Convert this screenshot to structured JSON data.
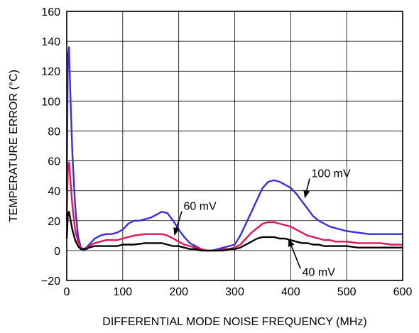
{
  "chart_data": {
    "type": "line",
    "xlabel": "DIFFERENTIAL MODE NOISE FREQUENCY (MHz)",
    "ylabel": "TEMPERATURE ERROR (°C)",
    "xlim": [
      0,
      600
    ],
    "ylim": [
      -20,
      160
    ],
    "x_ticks": [
      0,
      100,
      200,
      300,
      400,
      500,
      600
    ],
    "y_ticks": [
      -20,
      0,
      20,
      40,
      60,
      80,
      100,
      120,
      140,
      160
    ],
    "x_tick_labels": [
      "0",
      "100",
      "200",
      "300",
      "400",
      "500",
      "600"
    ],
    "y_tick_labels": [
      "−20",
      "0",
      "20",
      "40",
      "60",
      "80",
      "100",
      "120",
      "140",
      "160"
    ],
    "grid": true,
    "series": [
      {
        "name": "100 mV",
        "color": "#3a2ee0",
        "points": [
          [
            0,
            40
          ],
          [
            2,
            130
          ],
          [
            4,
            136
          ],
          [
            6,
            110
          ],
          [
            10,
            65
          ],
          [
            15,
            30
          ],
          [
            20,
            10
          ],
          [
            25,
            2
          ],
          [
            30,
            0
          ],
          [
            35,
            2
          ],
          [
            40,
            4
          ],
          [
            50,
            8
          ],
          [
            60,
            10
          ],
          [
            70,
            11
          ],
          [
            80,
            11
          ],
          [
            90,
            12
          ],
          [
            100,
            14
          ],
          [
            110,
            18
          ],
          [
            120,
            20
          ],
          [
            130,
            20
          ],
          [
            140,
            21
          ],
          [
            150,
            22
          ],
          [
            160,
            24
          ],
          [
            170,
            26
          ],
          [
            180,
            25
          ],
          [
            190,
            20
          ],
          [
            200,
            14
          ],
          [
            210,
            9
          ],
          [
            220,
            5
          ],
          [
            230,
            3
          ],
          [
            240,
            1
          ],
          [
            250,
            0
          ],
          [
            260,
            0
          ],
          [
            270,
            1
          ],
          [
            280,
            2
          ],
          [
            290,
            3
          ],
          [
            300,
            4
          ],
          [
            310,
            10
          ],
          [
            320,
            18
          ],
          [
            330,
            26
          ],
          [
            340,
            34
          ],
          [
            350,
            42
          ],
          [
            360,
            46
          ],
          [
            370,
            47
          ],
          [
            380,
            46
          ],
          [
            390,
            44
          ],
          [
            400,
            42
          ],
          [
            410,
            38
          ],
          [
            420,
            33
          ],
          [
            430,
            28
          ],
          [
            440,
            23
          ],
          [
            450,
            20
          ],
          [
            460,
            18
          ],
          [
            470,
            16
          ],
          [
            480,
            15
          ],
          [
            490,
            14
          ],
          [
            500,
            13
          ],
          [
            520,
            12
          ],
          [
            540,
            11
          ],
          [
            560,
            11
          ],
          [
            580,
            11
          ],
          [
            600,
            11
          ]
        ]
      },
      {
        "name": "60 mV",
        "color": "#e0145a",
        "points": [
          [
            0,
            20
          ],
          [
            2,
            55
          ],
          [
            4,
            59
          ],
          [
            6,
            50
          ],
          [
            10,
            30
          ],
          [
            15,
            14
          ],
          [
            20,
            6
          ],
          [
            25,
            2
          ],
          [
            30,
            1
          ],
          [
            35,
            2
          ],
          [
            40,
            3
          ],
          [
            50,
            5
          ],
          [
            60,
            6
          ],
          [
            70,
            7
          ],
          [
            80,
            7
          ],
          [
            90,
            7
          ],
          [
            100,
            8
          ],
          [
            110,
            9
          ],
          [
            120,
            10
          ],
          [
            140,
            11
          ],
          [
            160,
            11
          ],
          [
            170,
            11
          ],
          [
            180,
            10
          ],
          [
            190,
            8
          ],
          [
            200,
            6
          ],
          [
            210,
            4
          ],
          [
            220,
            3
          ],
          [
            230,
            2
          ],
          [
            240,
            1
          ],
          [
            250,
            0
          ],
          [
            260,
            0
          ],
          [
            270,
            0
          ],
          [
            280,
            1
          ],
          [
            290,
            1
          ],
          [
            300,
            2
          ],
          [
            310,
            4
          ],
          [
            320,
            8
          ],
          [
            330,
            12
          ],
          [
            340,
            15
          ],
          [
            350,
            18
          ],
          [
            360,
            19
          ],
          [
            370,
            19
          ],
          [
            380,
            18
          ],
          [
            390,
            17
          ],
          [
            400,
            16
          ],
          [
            410,
            14
          ],
          [
            420,
            12
          ],
          [
            430,
            10
          ],
          [
            440,
            9
          ],
          [
            450,
            8
          ],
          [
            460,
            7
          ],
          [
            470,
            7
          ],
          [
            480,
            6
          ],
          [
            500,
            6
          ],
          [
            520,
            5
          ],
          [
            540,
            5
          ],
          [
            560,
            5
          ],
          [
            580,
            4
          ],
          [
            600,
            4
          ]
        ]
      },
      {
        "name": "40 mV",
        "color": "#000000",
        "points": [
          [
            0,
            8
          ],
          [
            2,
            24
          ],
          [
            4,
            26
          ],
          [
            6,
            22
          ],
          [
            10,
            14
          ],
          [
            15,
            7
          ],
          [
            20,
            3
          ],
          [
            25,
            1
          ],
          [
            30,
            1
          ],
          [
            35,
            1
          ],
          [
            40,
            2
          ],
          [
            50,
            3
          ],
          [
            60,
            3
          ],
          [
            70,
            3
          ],
          [
            80,
            3
          ],
          [
            90,
            3
          ],
          [
            100,
            4
          ],
          [
            110,
            4
          ],
          [
            120,
            4
          ],
          [
            140,
            5
          ],
          [
            160,
            5
          ],
          [
            170,
            5
          ],
          [
            180,
            4
          ],
          [
            190,
            3
          ],
          [
            200,
            3
          ],
          [
            210,
            2
          ],
          [
            220,
            1
          ],
          [
            230,
            1
          ],
          [
            240,
            0
          ],
          [
            250,
            0
          ],
          [
            270,
            0
          ],
          [
            280,
            0
          ],
          [
            290,
            1
          ],
          [
            300,
            1
          ],
          [
            310,
            2
          ],
          [
            320,
            4
          ],
          [
            330,
            6
          ],
          [
            340,
            8
          ],
          [
            350,
            9
          ],
          [
            360,
            9
          ],
          [
            370,
            9
          ],
          [
            380,
            8
          ],
          [
            390,
            8
          ],
          [
            400,
            7
          ],
          [
            410,
            6
          ],
          [
            420,
            5
          ],
          [
            430,
            5
          ],
          [
            440,
            4
          ],
          [
            450,
            4
          ],
          [
            460,
            3
          ],
          [
            480,
            3
          ],
          [
            500,
            3
          ],
          [
            520,
            2
          ],
          [
            540,
            2
          ],
          [
            560,
            2
          ],
          [
            580,
            2
          ],
          [
            600,
            2
          ]
        ]
      }
    ],
    "annotations": [
      {
        "text": "100 mV",
        "at": [
          472,
          52
        ],
        "arrow_tip": [
          425,
          35
        ]
      },
      {
        "text": "60 mV",
        "at": [
          238,
          30
        ],
        "arrow_tip": [
          192,
          10
        ]
      },
      {
        "text": "40 mV",
        "at": [
          450,
          -14
        ],
        "arrow_tip": [
          396,
          8
        ]
      }
    ]
  }
}
